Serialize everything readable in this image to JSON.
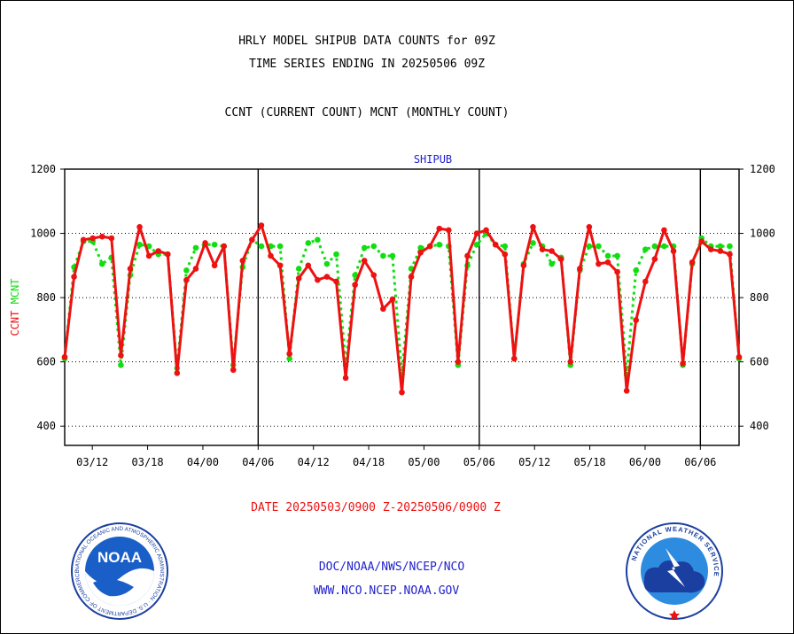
{
  "header": {
    "line1": "HRLY MODEL SHIPUB DATA COUNTS for 09Z",
    "line2": "TIME SERIES ENDING IN 20250506 09Z",
    "line3": "CCNT (CURRENT COUNT) MCNT (MONTHLY COUNT)"
  },
  "footer": {
    "date_range": "DATE 20250503/0900 Z-20250506/0900 Z",
    "org_path": "DOC/NOAA/NWS/NCEP/NCO",
    "website": "WWW.NCO.NCEP.NOAA.GOV"
  },
  "logos": {
    "noaa_text": "NOAA",
    "noaa_ring": "NATIONAL OCEANIC AND ATMOSPHERIC ADMINISTRATION · U.S. DEPARTMENT OF COMMERCE ·",
    "nws_ring": "NATIONAL WEATHER SERVICE"
  },
  "colors": {
    "ccnt": "#ee1111",
    "mcnt": "#11dd11",
    "title": "#2222cc",
    "footer_red": "#ee1111",
    "footer_blue": "#2222cc"
  },
  "chart_data": {
    "type": "line",
    "title": "SHIPUB",
    "ylabel_parts": [
      {
        "text": "CCNT",
        "series": "CCNT"
      },
      {
        "text": "MCNT",
        "series": "MCNT"
      }
    ],
    "ylim": [
      340,
      1200
    ],
    "yticks": [
      400,
      600,
      800,
      1000,
      1200
    ],
    "x_range": [
      -0.5,
      60.5
    ],
    "xticks": [
      {
        "x": 2,
        "label": "03/12"
      },
      {
        "x": 7,
        "label": "03/18"
      },
      {
        "x": 12,
        "label": "04/00"
      },
      {
        "x": 17,
        "label": "04/06"
      },
      {
        "x": 22,
        "label": "04/12"
      },
      {
        "x": 27,
        "label": "04/18"
      },
      {
        "x": 32,
        "label": "05/00"
      },
      {
        "x": 37,
        "label": "05/06"
      },
      {
        "x": 42,
        "label": "05/12"
      },
      {
        "x": 47,
        "label": "05/18"
      },
      {
        "x": 52,
        "label": "06/00"
      },
      {
        "x": 57,
        "label": "06/06"
      }
    ],
    "day_boundaries": [
      17,
      37,
      57
    ],
    "grid": "dotted horizontal",
    "series": [
      {
        "name": "CCNT",
        "values": [
          615,
          865,
          980,
          985,
          990,
          985,
          620,
          890,
          1020,
          930,
          945,
          935,
          565,
          855,
          890,
          970,
          900,
          960,
          575,
          915,
          980,
          1025,
          930,
          900,
          625,
          860,
          900,
          855,
          865,
          850,
          550,
          840,
          915,
          870,
          765,
          795,
          505,
          865,
          940,
          960,
          1015,
          1010,
          600,
          930,
          1000,
          1010,
          965,
          935,
          610,
          900,
          1020,
          950,
          945,
          920,
          600,
          890,
          1020,
          905,
          910,
          880,
          510,
          730,
          850,
          920,
          1010,
          945,
          595,
          910,
          975,
          950,
          945,
          935,
          615
        ]
      },
      {
        "name": "MCNT",
        "values": [
          610,
          895,
          975,
          975,
          905,
          925,
          590,
          870,
          965,
          960,
          935,
          935,
          580,
          885,
          955,
          965,
          965,
          960,
          590,
          895,
          980,
          960,
          960,
          960,
          610,
          890,
          970,
          980,
          905,
          935,
          590,
          870,
          955,
          960,
          930,
          930,
          560,
          890,
          955,
          960,
          965,
          960,
          590,
          900,
          965,
          1000,
          965,
          960,
          610,
          905,
          970,
          960,
          905,
          925,
          590,
          885,
          960,
          960,
          930,
          930,
          560,
          885,
          950,
          960,
          960,
          960,
          590,
          905,
          985,
          960,
          960,
          960,
          610
        ]
      }
    ]
  }
}
